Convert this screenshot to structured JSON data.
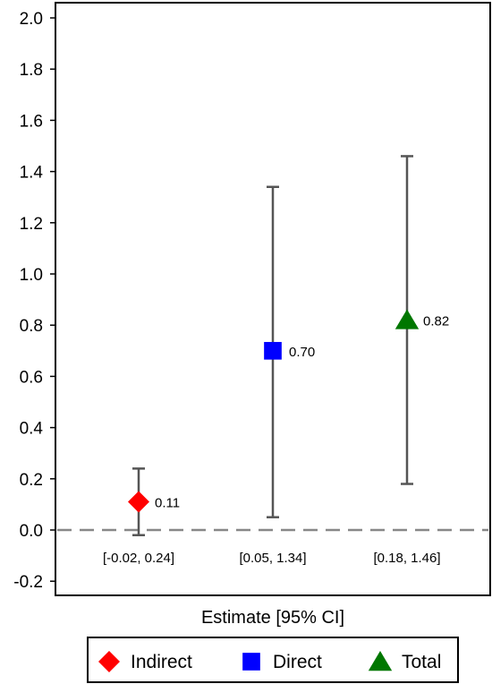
{
  "chart_data": {
    "type": "scatter",
    "xlabel": "Estimate [95% CI]",
    "ylim": [
      -0.25,
      2.05
    ],
    "yticks": [
      -0.2,
      0.0,
      0.2,
      0.4,
      0.6,
      0.8,
      1.0,
      1.2,
      1.4,
      1.6,
      1.8,
      2.0
    ],
    "ytick_labels": [
      "-0.2",
      "0.0",
      "0.2",
      "0.4",
      "0.6",
      "0.8",
      "1.0",
      "1.2",
      "1.4",
      "1.6",
      "1.8",
      "2.0"
    ],
    "reference_line": {
      "y": 0,
      "style": "dashed",
      "color": "#888888"
    },
    "grid": false,
    "legend_position": "bottom",
    "series": [
      {
        "name": "Indirect",
        "estimate": 0.11,
        "ci_low": -0.02,
        "ci_high": 0.24,
        "estimate_label": "0.11",
        "ci_label": "[-0.02, 0.24]",
        "marker": "diamond",
        "color": "#ff0000"
      },
      {
        "name": "Direct",
        "estimate": 0.7,
        "ci_low": 0.05,
        "ci_high": 1.34,
        "estimate_label": "0.70",
        "ci_label": "[0.05, 1.34]",
        "marker": "square",
        "color": "#0000ff"
      },
      {
        "name": "Total",
        "estimate": 0.82,
        "ci_low": 0.18,
        "ci_high": 1.46,
        "estimate_label": "0.82",
        "ci_label": "[0.18, 1.46]",
        "marker": "triangle",
        "color": "#007700"
      }
    ]
  }
}
